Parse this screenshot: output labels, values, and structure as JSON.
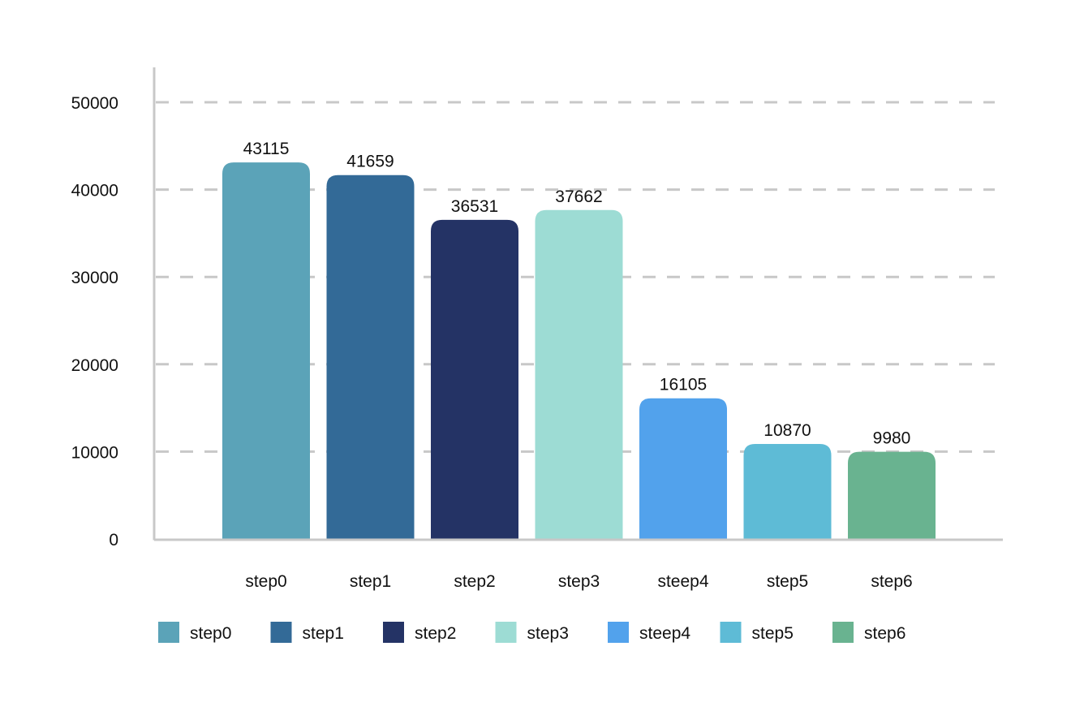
{
  "chart_data": {
    "type": "bar",
    "categories": [
      "step0",
      "step1",
      "step2",
      "step3",
      "steep4",
      "step5",
      "step6"
    ],
    "values": [
      43115,
      41659,
      36531,
      37662,
      16105,
      10870,
      9980
    ],
    "colors": [
      "#5BA3B8",
      "#336A97",
      "#243365",
      "#9DDCD4",
      "#52A2EC",
      "#5EBBD6",
      "#69B390"
    ],
    "ylim": [
      0,
      50000
    ],
    "yticks": [
      0,
      10000,
      20000,
      30000,
      40000,
      50000
    ],
    "title": "",
    "xlabel": "",
    "ylabel": "",
    "grid": "horizontal dashed",
    "data_labels": true,
    "legend": {
      "position": "bottom-left",
      "entries": [
        "step0",
        "step1",
        "step2",
        "step3",
        "steep4",
        "step5",
        "step6"
      ]
    }
  }
}
